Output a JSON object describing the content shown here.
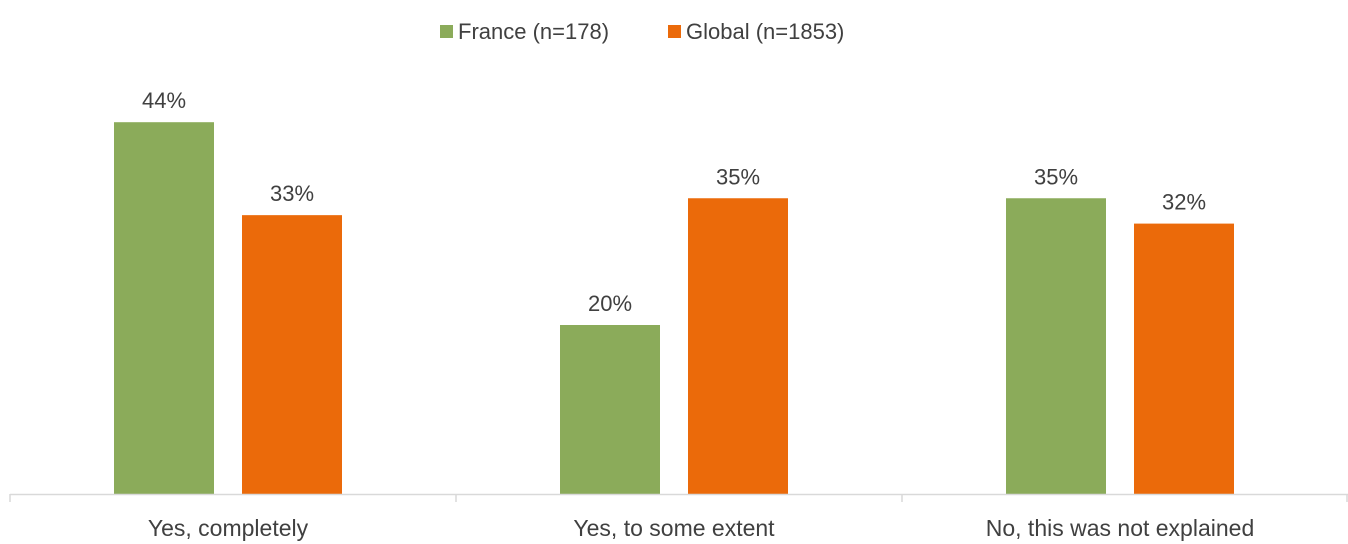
{
  "chart_data": {
    "type": "bar",
    "categories": [
      "Yes, completely",
      "Yes, to some extent",
      "No, this was not explained"
    ],
    "series": [
      {
        "name": "France (n=178)",
        "color": "#8bab5a",
        "values": [
          44,
          20,
          35
        ],
        "labels": [
          "44%",
          "20%",
          "35%"
        ]
      },
      {
        "name": "Global (n=1853)",
        "color": "#eb6a0a",
        "values": [
          33,
          35,
          32
        ],
        "labels": [
          "33%",
          "35%",
          "32%"
        ]
      }
    ],
    "ylim": [
      0,
      50
    ],
    "grid": false,
    "legend_position": "top-center",
    "axis_color": "#d9d9d9"
  }
}
